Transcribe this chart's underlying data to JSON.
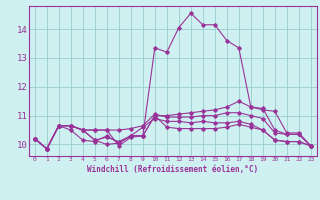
{
  "xlabel": "Windchill (Refroidissement éolien,°C)",
  "bg_color": "#cff0f0",
  "line_color": "#993399",
  "grid_color": "#99cccc",
  "xlim": [
    -0.5,
    23.5
  ],
  "ylim": [
    9.6,
    14.8
  ],
  "xticks": [
    0,
    1,
    2,
    3,
    4,
    5,
    6,
    7,
    8,
    9,
    10,
    11,
    12,
    13,
    14,
    15,
    16,
    17,
    18,
    19,
    20,
    21,
    22,
    23
  ],
  "yticks": [
    10,
    11,
    12,
    13,
    14
  ],
  "lines": [
    [
      10.2,
      9.85,
      10.65,
      10.65,
      10.5,
      10.15,
      10.25,
      10.1,
      10.3,
      10.3,
      11.0,
      11.0,
      11.05,
      11.1,
      11.15,
      11.2,
      11.3,
      11.5,
      11.3,
      11.25,
      10.5,
      10.35,
      10.35,
      9.95
    ],
    [
      10.2,
      9.85,
      10.65,
      10.65,
      10.5,
      10.15,
      10.0,
      10.05,
      10.3,
      10.3,
      11.0,
      10.6,
      10.55,
      10.55,
      10.55,
      10.55,
      10.6,
      10.7,
      10.6,
      10.5,
      10.15,
      10.1,
      10.1,
      9.95
    ],
    [
      10.2,
      9.85,
      10.65,
      10.5,
      10.15,
      10.1,
      10.3,
      10.05,
      10.3,
      10.6,
      10.9,
      10.8,
      10.8,
      10.75,
      10.8,
      10.75,
      10.75,
      10.8,
      10.7,
      10.5,
      10.15,
      10.1,
      10.1,
      9.95
    ],
    [
      10.2,
      9.85,
      10.65,
      10.65,
      10.5,
      10.5,
      10.5,
      10.5,
      10.55,
      10.65,
      11.05,
      10.95,
      10.95,
      10.95,
      11.0,
      11.0,
      11.1,
      11.1,
      11.0,
      10.9,
      10.4,
      10.35,
      10.35,
      9.95
    ],
    [
      10.2,
      9.85,
      10.65,
      10.65,
      10.5,
      10.5,
      10.5,
      9.95,
      10.25,
      10.3,
      13.35,
      13.2,
      14.05,
      14.55,
      14.15,
      14.15,
      13.6,
      13.35,
      11.3,
      11.2,
      11.15,
      10.4,
      10.4,
      9.95
    ]
  ]
}
